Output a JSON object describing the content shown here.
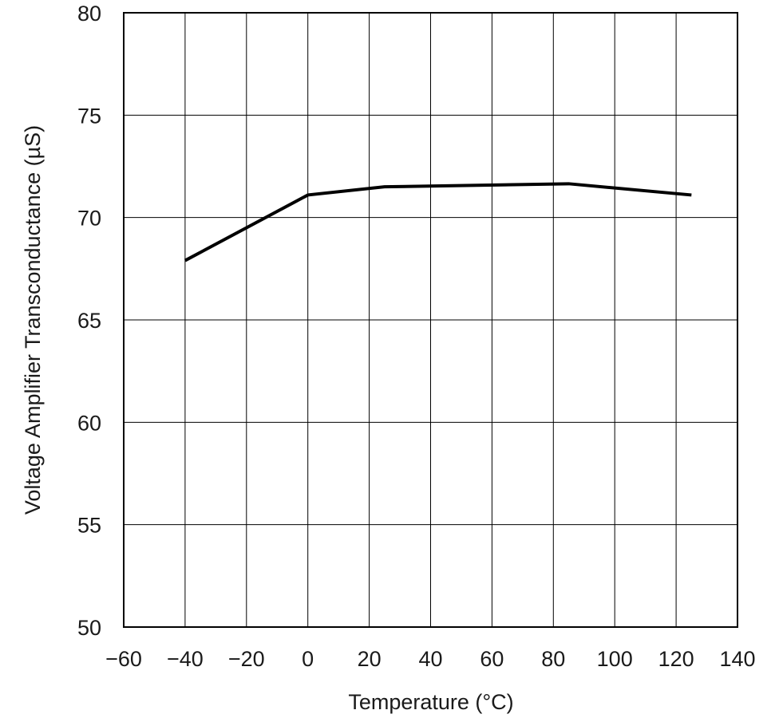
{
  "chart_data": {
    "type": "line",
    "title": "",
    "xlabel": "Temperature (°C)",
    "ylabel": "Voltage Amplifier Transconductance (µS)",
    "xlim": [
      -60,
      140
    ],
    "ylim": [
      50,
      80
    ],
    "xticks": [
      -60,
      -40,
      -20,
      0,
      20,
      40,
      60,
      80,
      100,
      120,
      140
    ],
    "xtick_labels": [
      "−60",
      "−40",
      "−20",
      "0",
      "20",
      "40",
      "60",
      "80",
      "100",
      "120",
      "140"
    ],
    "yticks": [
      50,
      55,
      60,
      65,
      70,
      75,
      80
    ],
    "ytick_labels": [
      "50",
      "55",
      "60",
      "65",
      "70",
      "75",
      "80"
    ],
    "grid": true,
    "series": [
      {
        "color": "#000000",
        "x": [
          -40,
          0,
          25,
          85,
          125
        ],
        "y": [
          67.9,
          71.1,
          71.5,
          71.65,
          71.1
        ]
      }
    ]
  }
}
